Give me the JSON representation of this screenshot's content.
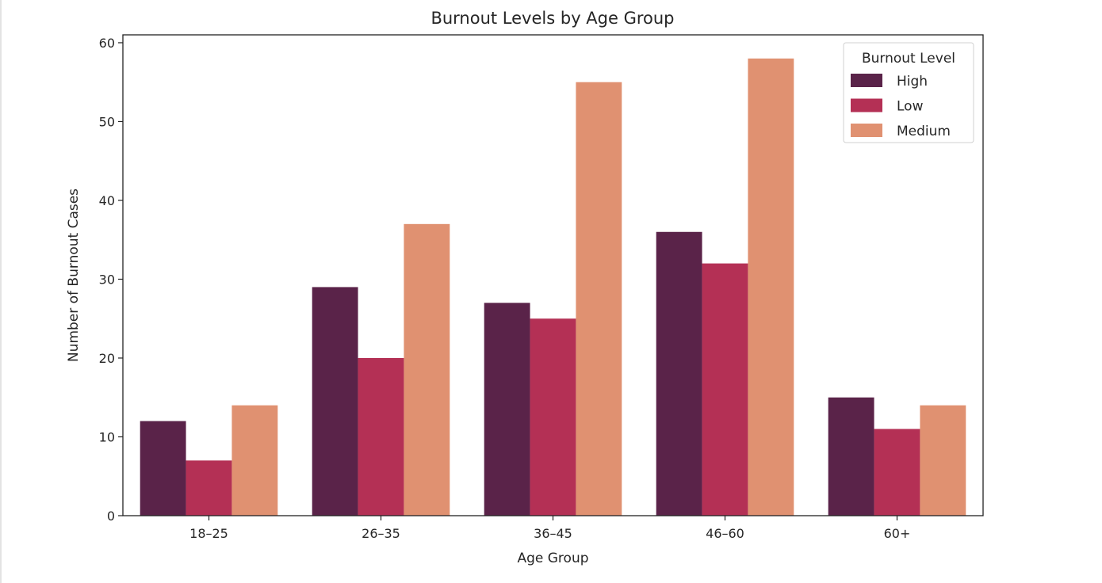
{
  "chart_data": {
    "type": "bar",
    "title": "Burnout Levels by Age Group",
    "xlabel": "Age Group",
    "ylabel": "Number of Burnout Cases",
    "categories": [
      "18–25",
      "26–35",
      "36–45",
      "46–60",
      "60+"
    ],
    "ylim": [
      0,
      61
    ],
    "yticks": [
      0,
      10,
      20,
      30,
      40,
      50,
      60
    ],
    "grid": false,
    "legend": {
      "title": "Burnout Level",
      "placement": "top-right"
    },
    "series": [
      {
        "name": "High",
        "color": "#5a2349",
        "values": [
          12,
          29,
          27,
          36,
          15
        ]
      },
      {
        "name": "Low",
        "color": "#b43055",
        "values": [
          7,
          20,
          25,
          32,
          11
        ]
      },
      {
        "name": "Medium",
        "color": "#e09171",
        "values": [
          14,
          37,
          55,
          58,
          14
        ]
      }
    ]
  }
}
